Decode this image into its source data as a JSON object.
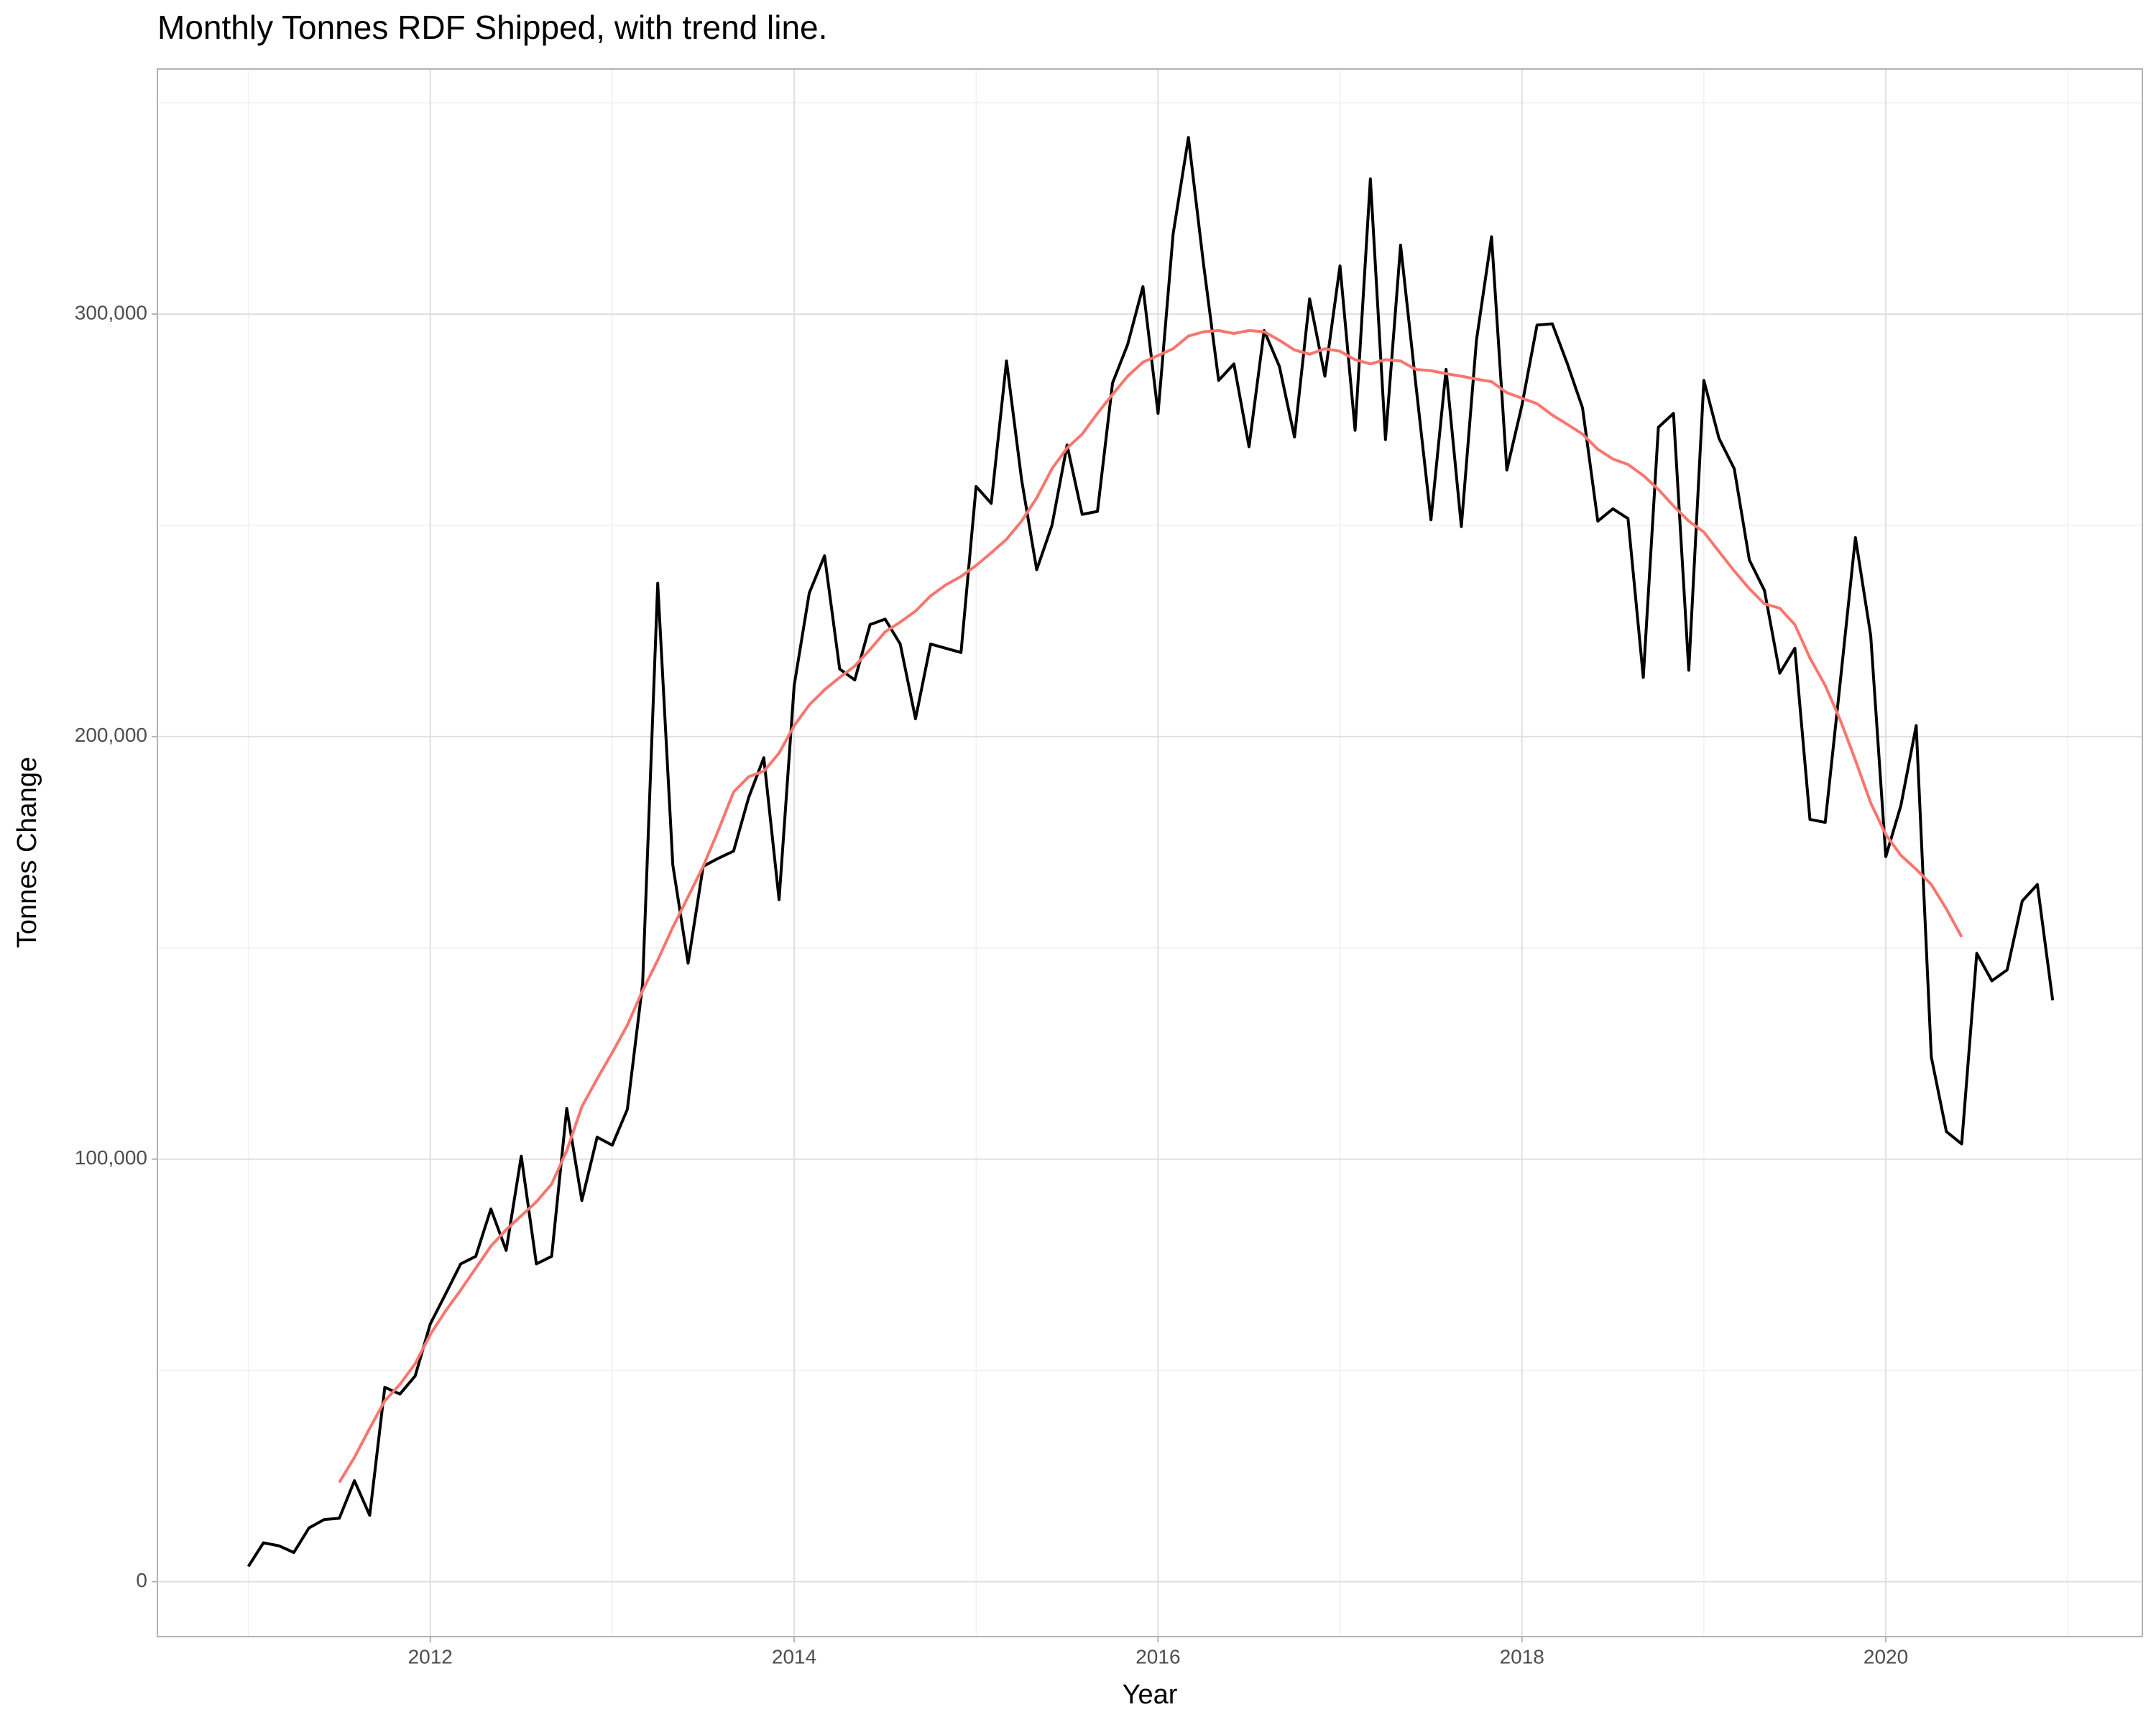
{
  "chart_data": {
    "type": "line",
    "title": "Monthly Tonnes RDF Shipped, with trend line.",
    "x_label": "Year",
    "y_label": "Tonnes Change",
    "x": [
      2011,
      2011.083,
      2011.167,
      2011.25,
      2011.333,
      2011.417,
      2011.5,
      2011.583,
      2011.667,
      2011.75,
      2011.833,
      2011.917,
      2012,
      2012.083,
      2012.167,
      2012.25,
      2012.333,
      2012.417,
      2012.5,
      2012.583,
      2012.667,
      2012.75,
      2012.833,
      2012.917,
      2013,
      2013.083,
      2013.167,
      2013.25,
      2013.333,
      2013.417,
      2013.5,
      2013.583,
      2013.667,
      2013.75,
      2013.833,
      2013.917,
      2014,
      2014.083,
      2014.167,
      2014.25,
      2014.333,
      2014.417,
      2014.5,
      2014.583,
      2014.667,
      2014.75,
      2014.833,
      2014.917,
      2015,
      2015.083,
      2015.167,
      2015.25,
      2015.333,
      2015.417,
      2015.5,
      2015.583,
      2015.667,
      2015.75,
      2015.833,
      2015.917,
      2016,
      2016.083,
      2016.167,
      2016.25,
      2016.333,
      2016.417,
      2016.5,
      2016.583,
      2016.667,
      2016.75,
      2016.833,
      2016.917,
      2017,
      2017.083,
      2017.167,
      2017.25,
      2017.333,
      2017.417,
      2017.5,
      2017.583,
      2017.667,
      2017.75,
      2017.833,
      2017.917,
      2018,
      2018.083,
      2018.167,
      2018.25,
      2018.333,
      2018.417,
      2018.5,
      2018.583,
      2018.667,
      2018.75,
      2018.833,
      2018.917,
      2019,
      2019.083,
      2019.167,
      2019.25,
      2019.333,
      2019.417,
      2019.5,
      2019.583,
      2019.667,
      2019.75,
      2019.833,
      2019.917,
      2020,
      2020.083,
      2020.167,
      2020.25,
      2020.333,
      2020.417,
      2020.5,
      2020.583,
      2020.667,
      2020.75,
      2020.833,
      2020.917
    ],
    "series": [
      {
        "color": "#000000",
        "values": [
          3600,
          9200,
          8500,
          6900,
          12700,
          14700,
          15000,
          23900,
          15700,
          46000,
          44400,
          48700,
          61000,
          68000,
          75200,
          77000,
          88200,
          78400,
          100700,
          75200,
          77000,
          112000,
          90200,
          105200,
          103300,
          111800,
          141500,
          236300,
          169600,
          146400,
          169300,
          171200,
          172900,
          185600,
          195000,
          161400,
          212100,
          234000,
          242800,
          216000,
          213400,
          226500,
          227800,
          221900,
          204200,
          221900,
          220900,
          219900,
          259200,
          255200,
          288900,
          260800,
          239500,
          250000,
          269000,
          252600,
          253300,
          283700,
          292800,
          306500,
          276500,
          319000,
          341800,
          311800,
          284300,
          288200,
          268600,
          296100,
          287600,
          270900,
          303600,
          285300,
          311400,
          272500,
          332000,
          270300,
          316300,
          283300,
          251300,
          286900,
          249700,
          293800,
          318300,
          263100,
          278400,
          297400,
          297700,
          288200,
          277800,
          251000,
          253900,
          251600,
          214000,
          273200,
          276500,
          215700,
          284300,
          270600,
          263400,
          241800,
          234600,
          215000,
          220900,
          180400,
          179700,
          213100,
          247100,
          223900,
          171600,
          183700,
          202600,
          124200,
          106500,
          103600,
          148700,
          142200,
          144800,
          161100,
          165000,
          137600
        ]
      },
      {
        "color": "#F8766D",
        "values": [
          null,
          null,
          null,
          null,
          null,
          null,
          23500,
          29400,
          36300,
          42800,
          46700,
          51600,
          58500,
          64000,
          69000,
          74200,
          79400,
          83300,
          86600,
          89900,
          94100,
          102000,
          112400,
          119000,
          125200,
          131700,
          139900,
          147100,
          154900,
          162100,
          169300,
          177800,
          186900,
          190500,
          191800,
          196100,
          202600,
          207500,
          211100,
          214000,
          216700,
          220600,
          224800,
          227100,
          229700,
          233300,
          235900,
          237900,
          240500,
          243500,
          246700,
          251000,
          256500,
          263400,
          268300,
          271600,
          276500,
          281000,
          285300,
          288600,
          290200,
          291800,
          294800,
          295800,
          296100,
          295400,
          296100,
          295800,
          293800,
          291500,
          290500,
          291800,
          291200,
          289200,
          288200,
          289200,
          288900,
          286900,
          286600,
          285900,
          285300,
          284600,
          284000,
          281400,
          280100,
          278800,
          276100,
          273900,
          271600,
          268000,
          265700,
          264400,
          261800,
          258500,
          254600,
          251000,
          248400,
          243800,
          239200,
          235000,
          231400,
          230400,
          226500,
          218600,
          212100,
          203900,
          194400,
          184300,
          176800,
          171900,
          168600,
          165000,
          159200,
          152600,
          null,
          null,
          null,
          null,
          null,
          null
        ]
      }
    ],
    "xlim": [
      2010.5,
      2021.41
    ],
    "ylim": [
      -13000,
      358000
    ],
    "xticks": [
      2012,
      2014,
      2016,
      2018,
      2020
    ],
    "yticks": [
      0,
      {
        "value": 100000,
        "label": "100,000"
      },
      {
        "value": 200000,
        "label": "200,000"
      },
      {
        "value": 300000,
        "label": "300,000"
      }
    ],
    "minor_xticks": [
      2011,
      2013,
      2015,
      2017,
      2019,
      2021
    ],
    "minor_yticks": [
      50000,
      150000,
      250000,
      350000
    ],
    "grid": true
  }
}
